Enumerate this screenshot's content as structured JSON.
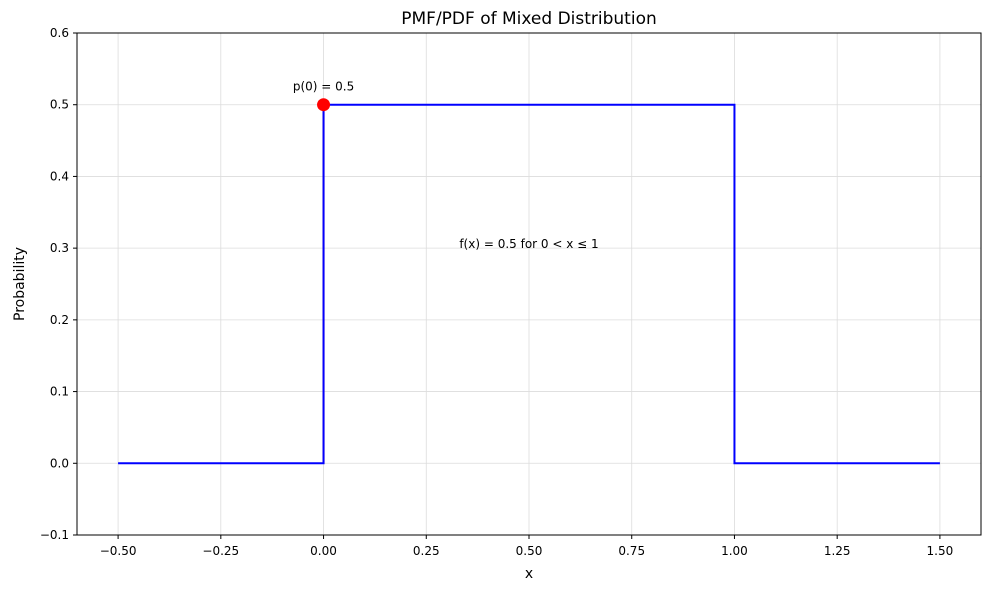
{
  "chart_data": {
    "type": "line",
    "title": "PMF/PDF of Mixed Distribution",
    "xlabel": "x",
    "ylabel": "Probability",
    "xlim": [
      -0.6,
      1.6
    ],
    "ylim": [
      -0.1,
      0.6
    ],
    "x_ticks": [
      -0.5,
      -0.25,
      0.0,
      0.25,
      0.5,
      0.75,
      1.0,
      1.25,
      1.5
    ],
    "x_tick_labels": [
      "−0.50",
      "−0.25",
      "0.00",
      "0.25",
      "0.50",
      "0.75",
      "1.00",
      "1.25",
      "1.50"
    ],
    "y_ticks": [
      -0.1,
      0.0,
      0.1,
      0.2,
      0.3,
      0.4,
      0.5,
      0.6
    ],
    "y_tick_labels": [
      "−0.1",
      "0.0",
      "0.1",
      "0.2",
      "0.3",
      "0.4",
      "0.5",
      "0.6"
    ],
    "grid": true,
    "series": [
      {
        "color": "#0000ff",
        "x": [
          -0.5,
          0.0,
          0.0,
          1.0,
          1.0,
          1.5
        ],
        "y": [
          0.0,
          0.0,
          0.5,
          0.5,
          0.0,
          0.0
        ]
      }
    ],
    "point_mass": {
      "x": 0.0,
      "y": 0.5,
      "color": "#ff0000"
    },
    "annotations": [
      {
        "text": "p(0) = 0.5",
        "x": 0.0,
        "y": 0.52
      },
      {
        "text": "f(x) = 0.5 for 0 < x ≤ 1",
        "x": 0.5,
        "y": 0.3
      }
    ]
  }
}
